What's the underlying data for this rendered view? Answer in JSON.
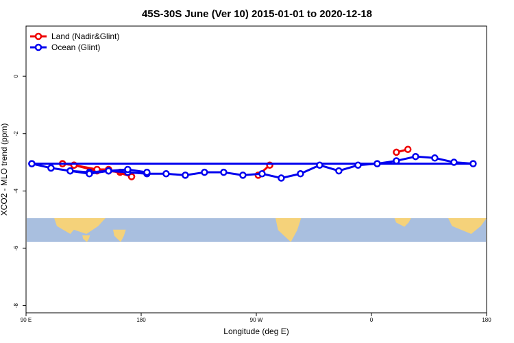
{
  "chart_data": {
    "type": "line",
    "title": "45S-30S June (Ver 10)   2015-01-01 to 2020-12-18",
    "xlabel": "Longitude (deg E)",
    "ylabel": "XCO2 - MLO trend (ppm)",
    "xlim": [
      90,
      450
    ],
    "ylim": [
      -8.25,
      1.75
    ],
    "x_ticks": [
      {
        "value": 90,
        "label": "90 E"
      },
      {
        "value": 180,
        "label": "180"
      },
      {
        "value": 270,
        "label": "90 W"
      },
      {
        "value": 360,
        "label": "0"
      },
      {
        "value": 450,
        "label": "180"
      }
    ],
    "y_ticks": [
      {
        "value": 0,
        "label": "0"
      },
      {
        "value": -2,
        "label": "-2"
      },
      {
        "value": -4,
        "label": "-4"
      },
      {
        "value": -6,
        "label": "-6"
      },
      {
        "value": -8,
        "label": "-8"
      }
    ],
    "legend_position": "top-left",
    "grid": false,
    "map_strip": {
      "y_range": [
        -5.78,
        -4.95
      ],
      "ocean_color": "#a9bfdf",
      "land_color": "#f5d27a",
      "land_spans": [
        {
          "x": [
            115,
            152
          ],
          "y_top": -4.95,
          "y_bottom": -5.5
        },
        {
          "x": [
            158,
            168
          ],
          "y_top": -5.35,
          "y_bottom": -5.78
        },
        {
          "x": [
            285,
            305
          ],
          "y_top": -4.95,
          "y_bottom": -5.78
        },
        {
          "x": [
            378,
            391
          ],
          "y_top": -4.95,
          "y_bottom": -5.25
        },
        {
          "x": [
            472,
            493
          ],
          "y_top": -4.95,
          "y_bottom": -5.5
        },
        {
          "x": [
            494,
            500
          ],
          "y_top": -5.55,
          "y_bottom": -5.78
        },
        {
          "x": [
            420,
            450
          ],
          "y_top": -4.95,
          "y_bottom": -5.5
        }
      ]
    },
    "series": [
      {
        "name": "Land (Nadir&Glint)",
        "color": "#ee0000",
        "segments": [
          [
            {
              "x": 118.5,
              "y": -3.05
            },
            {
              "x": 127.5,
              "y": -3.1
            },
            {
              "x": 145.5,
              "y": -3.3
            },
            {
              "x": 154.5,
              "y": -3.3
            },
            {
              "x": 163.5,
              "y": -3.35
            },
            {
              "x": 172.5,
              "y": -3.5
            }
          ],
          [
            {
              "x": 271.5,
              "y": -3.45
            },
            {
              "x": 280.5,
              "y": -3.1
            }
          ],
          [
            {
              "x": 379.5,
              "y": -2.65
            },
            {
              "x": 388.5,
              "y": -2.55
            }
          ],
          [
            {
              "x": 478.5,
              "y": -3.05
            },
            {
              "x": 487.5,
              "y": -3.1
            },
            {
              "x": 505.5,
              "y": -3.25
            },
            {
              "x": 514.5,
              "y": -3.25
            },
            {
              "x": 532.5,
              "y": -3.5
            }
          ]
        ]
      },
      {
        "name": "Ocean (Glint)",
        "color": "#0000ee",
        "segments": [
          [
            {
              "x": 94.5,
              "y": -3.05
            },
            {
              "x": 109.5,
              "y": -3.2
            },
            {
              "x": 124.5,
              "y": -3.3
            },
            {
              "x": 139.5,
              "y": -3.35
            },
            {
              "x": 154.5,
              "y": -3.3
            },
            {
              "x": 169.5,
              "y": -3.35
            },
            {
              "x": 184.5,
              "y": -3.4
            },
            {
              "x": 199.5,
              "y": -3.4
            },
            {
              "x": 214.5,
              "y": -3.45
            },
            {
              "x": 229.5,
              "y": -3.35
            },
            {
              "x": 244.5,
              "y": -3.35
            },
            {
              "x": 259.5,
              "y": -3.45
            },
            {
              "x": 274.5,
              "y": -3.4
            },
            {
              "x": 289.5,
              "y": -3.55
            },
            {
              "x": 304.5,
              "y": -3.4
            },
            {
              "x": 319.5,
              "y": -3.1
            },
            {
              "x": 334.5,
              "y": -3.3
            },
            {
              "x": 349.5,
              "y": -3.1
            },
            {
              "x": 364.5,
              "y": -3.05
            },
            {
              "x": 379.5,
              "y": -2.95
            },
            {
              "x": 394.5,
              "y": -2.8
            },
            {
              "x": 409.5,
              "y": -2.85
            },
            {
              "x": 424.5,
              "y": -3.0
            },
            {
              "x": 439.5,
              "y": -3.05
            },
            {
              "x": 454.5,
              "y": -3.05
            },
            {
              "x": 469.5,
              "y": -3.2
            },
            {
              "x": 484.5,
              "y": -3.3
            },
            {
              "x": 499.5,
              "y": -3.4
            },
            {
              "x": 514.5,
              "y": -3.3
            },
            {
              "x": 529.5,
              "y": -3.25
            },
            {
              "x": 544.5,
              "y": -3.35
            }
          ]
        ]
      }
    ]
  }
}
